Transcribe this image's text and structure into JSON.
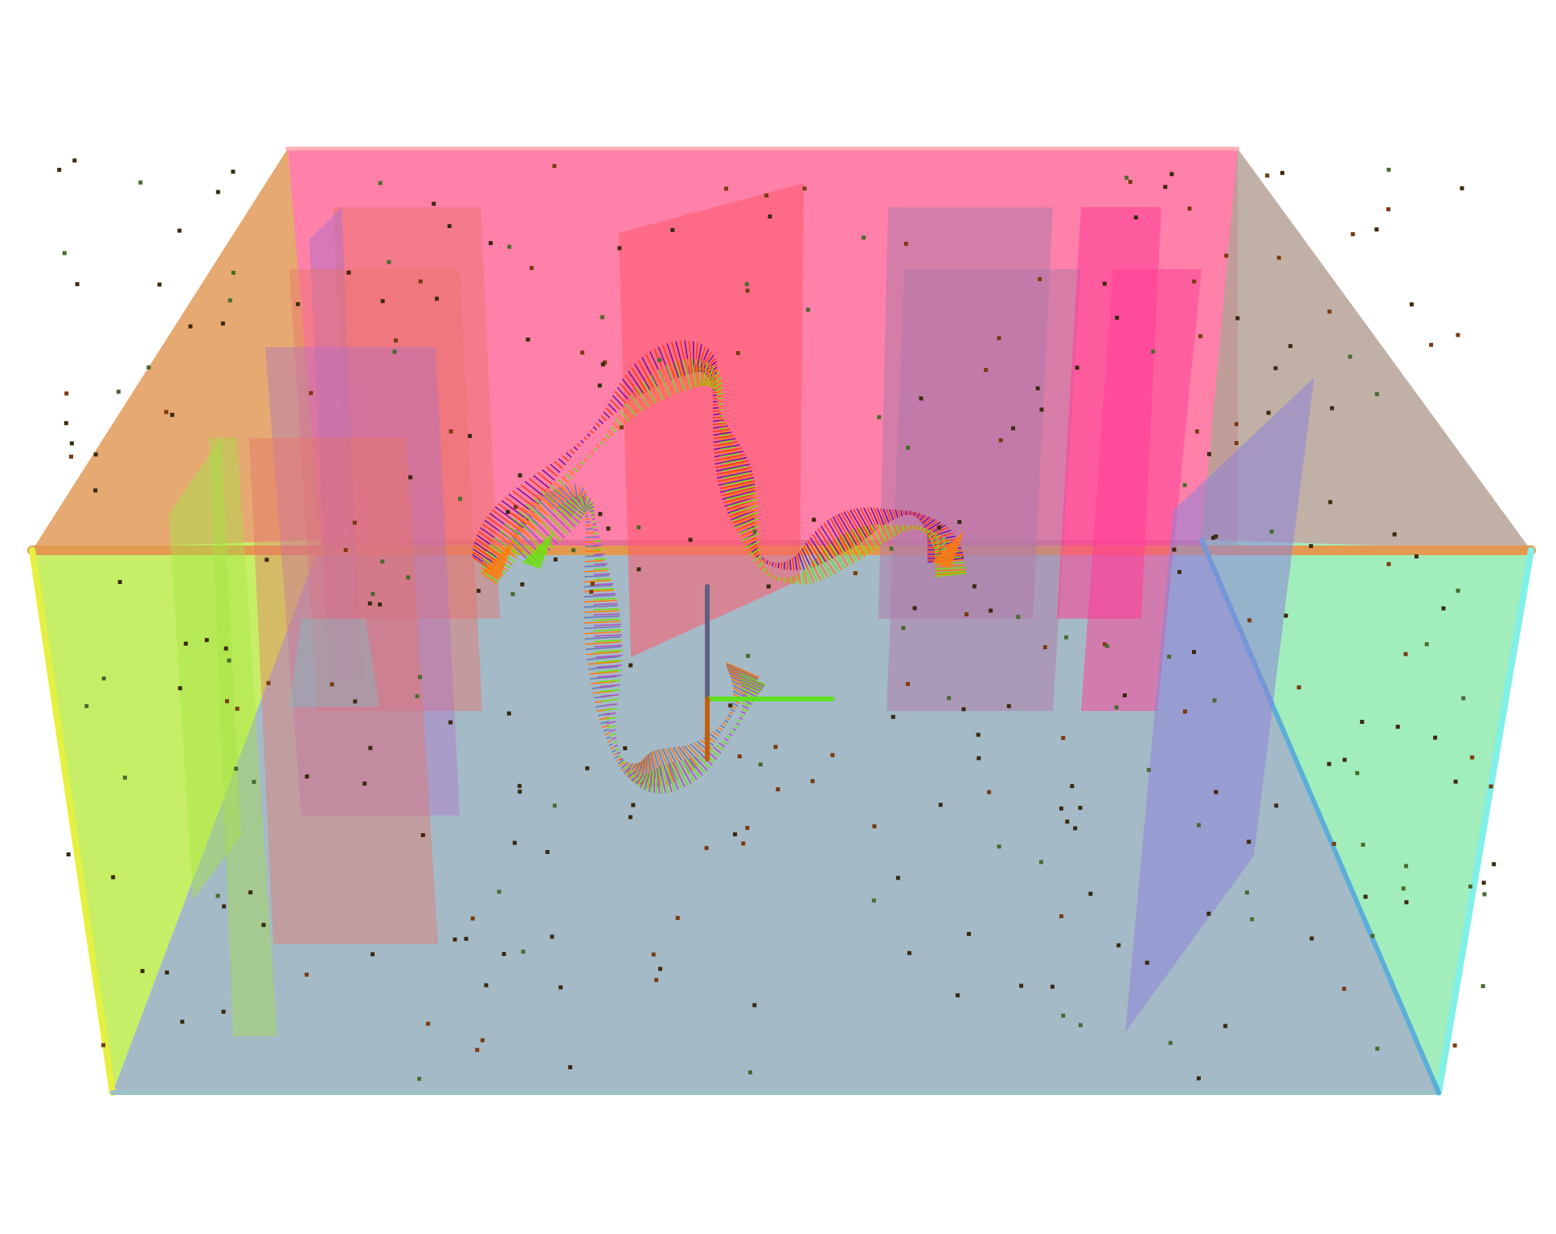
{
  "scene": {
    "background": "#ffffff",
    "walls": {
      "back": "#ff4f86",
      "left_top": "#e09a58",
      "right_top": "#b6a296",
      "left": "#b6ea3c",
      "right": "#86e8a8",
      "floor": "#9fb6c4"
    },
    "panels": {
      "warm": "#e8746a",
      "violet": "#b070c8",
      "red": "#ff5a6c",
      "mauve": "#b07aa8",
      "pink": "#ff3c96",
      "green": "#a6e444",
      "periwinkle": "#8c84d8",
      "teal": "#70c8c8"
    },
    "ribbon_colors": [
      "#ff3a1a",
      "#ff7a10",
      "#7b10a0",
      "#70e010",
      "#b050c0",
      "#6a7ab0"
    ],
    "axes": {
      "x": "#60e020",
      "y": "#606080",
      "z": "#c06010"
    },
    "particle_color": "#3a2a10",
    "particle_count": 320
  }
}
